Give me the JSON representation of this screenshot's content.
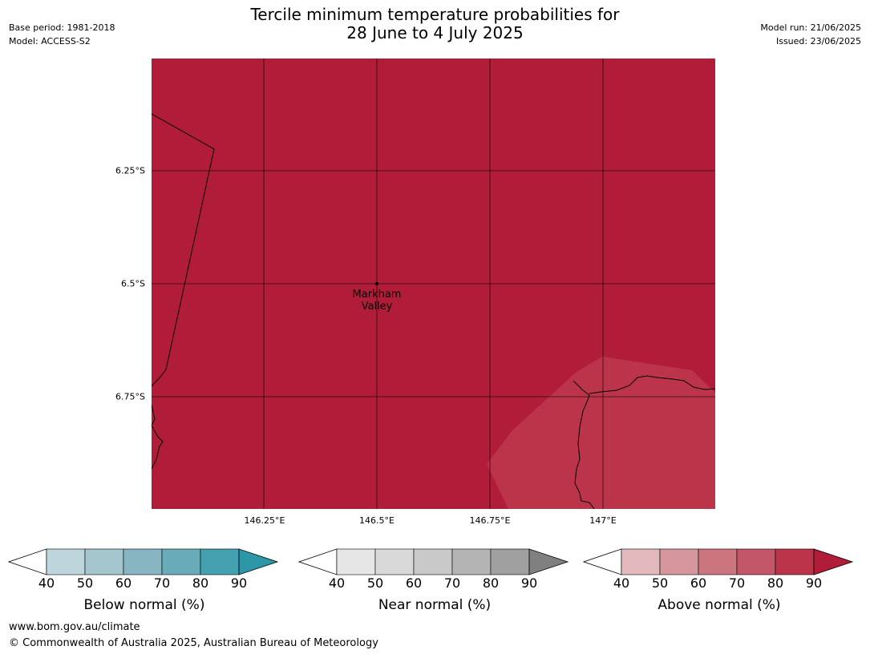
{
  "header": {
    "base_period": "Base period: 1981-2018",
    "model": "Model: ACCESS-S2",
    "model_run": "Model run: 21/06/2025",
    "issued": "Issued: 23/06/2025",
    "title_line1": "Tercile minimum temperature probabilities for",
    "title_line2": "28 June to 4 July 2025"
  },
  "map": {
    "lat_labels": [
      "6.25°S",
      "6.5°S",
      "6.75°S"
    ],
    "lon_labels": [
      "146.25°E",
      "146.5°E",
      "146.75°E",
      "147°E"
    ],
    "place": {
      "name_line1": "Markham",
      "name_line2": "Valley"
    },
    "background_color": "#b11d38",
    "lighter_region_color": "#bc3449",
    "grid_color": "#000000",
    "dominant_category": "Above normal",
    "dominant_range": "90"
  },
  "legends": [
    {
      "title": "Below normal (%)",
      "ticks": [
        "40",
        "50",
        "60",
        "70",
        "80",
        "90"
      ],
      "colors": [
        "#ffffff",
        "#bfd5dc",
        "#a6c6cd",
        "#88b5c2",
        "#6aabb9",
        "#45a0b0",
        "#2d97a8"
      ]
    },
    {
      "title": "Near normal (%)",
      "ticks": [
        "40",
        "50",
        "60",
        "70",
        "80",
        "90"
      ],
      "colors": [
        "#ffffff",
        "#e6e6e6",
        "#d9d9d9",
        "#c9c9c9",
        "#b4b4b4",
        "#a0a0a0",
        "#808080"
      ]
    },
    {
      "title": "Above normal (%)",
      "ticks": [
        "40",
        "50",
        "60",
        "70",
        "80",
        "90"
      ],
      "colors": [
        "#ffffff",
        "#e3b9be",
        "#d6969d",
        "#cb757e",
        "#c35668",
        "#bc3449",
        "#b11d38"
      ]
    }
  ],
  "footer": {
    "url": "www.bom.gov.au/climate",
    "copyright": "© Commonwealth of Australia 2025, Australian Bureau of Meteorology"
  }
}
